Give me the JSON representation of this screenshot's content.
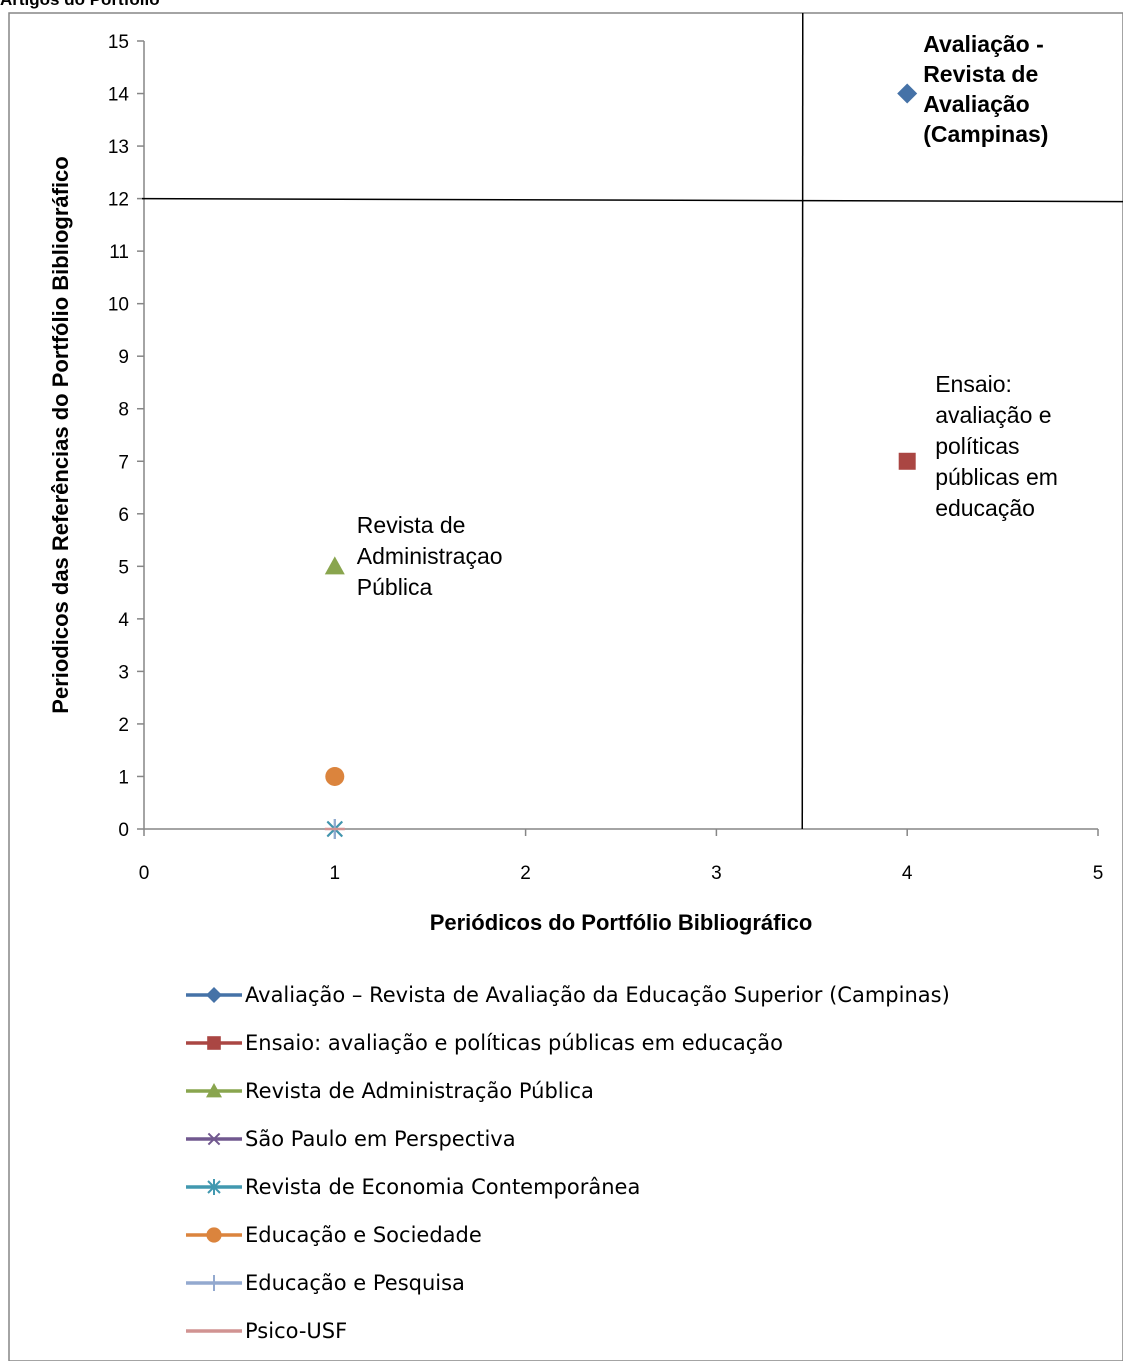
{
  "page_title": "Artigos do Portfólio",
  "chart_data": {
    "type": "scatter",
    "title": "",
    "xlabel": "Periódicos do Portfólio Bibliográfico",
    "ylabel": "Periodicos das Referências do Portfólio Bibliográfico",
    "xlim": [
      0,
      5
    ],
    "ylim": [
      0,
      15
    ],
    "x_ticks": [
      "0",
      "1",
      "2",
      "3",
      "4",
      "5"
    ],
    "y_ticks": [
      "0",
      "1",
      "2",
      "3",
      "4",
      "5",
      "6",
      "7",
      "8",
      "9",
      "10",
      "11",
      "12",
      "13",
      "14",
      "15"
    ],
    "grid": false,
    "legend_position": "bottom",
    "reference_lines": {
      "vertical_x": 3.45,
      "horizontal_y": 12
    },
    "series": [
      {
        "name": "Avaliação – Revista de Avaliação da Educação Superior (Campinas)",
        "x": 4,
        "y": 14,
        "marker": "diamond",
        "color": "#4572a7"
      },
      {
        "name": "Ensaio: avaliação e políticas públicas em educação",
        "x": 4,
        "y": 7,
        "marker": "square",
        "color": "#aa4643"
      },
      {
        "name": "Revista de Administração Pública",
        "x": 1,
        "y": 5,
        "marker": "triangle",
        "color": "#89a54e"
      },
      {
        "name": "São Paulo em Perspectiva",
        "x": 1,
        "y": 0,
        "marker": "x",
        "color": "#71588f"
      },
      {
        "name": "Revista de Economia Contemporânea",
        "x": 1,
        "y": 0,
        "marker": "star",
        "color": "#4198af"
      },
      {
        "name": "Educação e Sociedade",
        "x": 1,
        "y": 1,
        "marker": "circle",
        "color": "#db843d"
      },
      {
        "name": "Educação e Pesquisa",
        "x": 1,
        "y": 0,
        "marker": "plus",
        "color": "#93a9cf"
      },
      {
        "name": "Psico-USF",
        "x": 1,
        "y": 0,
        "marker": "dash",
        "color": "#d19392"
      }
    ],
    "annotations": [
      {
        "lines": [
          "Avaliação -",
          "Revista de",
          "Avaliação",
          "(Campinas)"
        ],
        "bold": true,
        "x": 4,
        "y": 14
      },
      {
        "lines": [
          "Ensaio:",
          "avaliação e",
          "políticas",
          "públicas em",
          "educação"
        ],
        "bold": false,
        "x": 4,
        "y": 7
      },
      {
        "lines": [
          "Revista de",
          "Administraçao",
          "Pública"
        ],
        "bold": false,
        "x": 1,
        "y": 5
      }
    ]
  }
}
